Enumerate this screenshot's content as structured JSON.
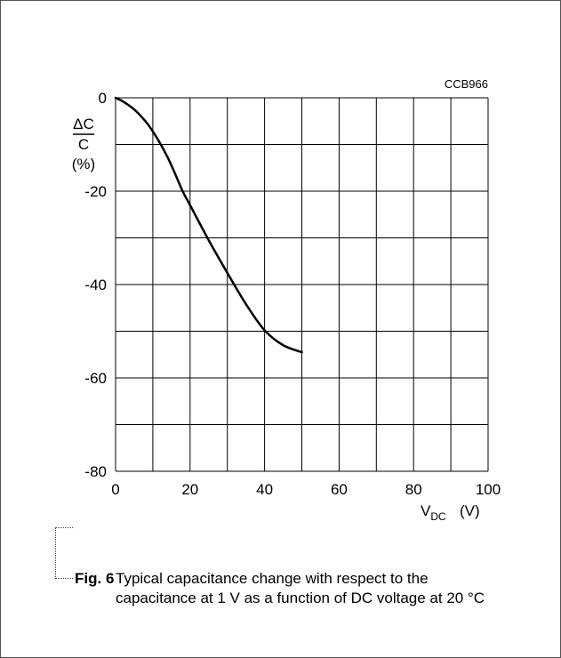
{
  "chart_data": {
    "type": "line",
    "id_label": "CCB966",
    "ylabel_top": "ΔC",
    "ylabel_bottom": "C",
    "ylabel_unit": "(%)",
    "xlabel_main": "V",
    "xlabel_sub": "DC",
    "xlabel_unit": "(V)",
    "xlim": [
      0,
      100
    ],
    "ylim": [
      -80,
      0
    ],
    "x_ticks": [
      0,
      20,
      40,
      60,
      80,
      100
    ],
    "y_ticks": [
      0,
      -20,
      -40,
      -60,
      -80
    ],
    "x_gridlines": [
      0,
      10,
      20,
      30,
      40,
      50,
      60,
      70,
      80,
      90,
      100
    ],
    "y_gridlines": [
      0,
      -10,
      -20,
      -30,
      -40,
      -50,
      -60,
      -70,
      -80
    ],
    "grid": true,
    "series": [
      {
        "x": [
          0,
          2,
          5,
          8,
          10,
          12,
          14,
          16,
          18,
          20,
          25,
          30,
          35,
          40,
          45,
          50
        ],
        "y": [
          0,
          -0.8,
          -2.5,
          -5.0,
          -7.2,
          -9.8,
          -12.8,
          -16.3,
          -20.0,
          -23.0,
          -30.5,
          -37.5,
          -44.2,
          -49.8,
          -53.0,
          -54.5
        ]
      }
    ]
  },
  "caption": {
    "fig_label": "Fig. 6",
    "text": "Typical capacitance change with respect to the capacitance at 1 V as a function of DC voltage at 20 °C"
  }
}
